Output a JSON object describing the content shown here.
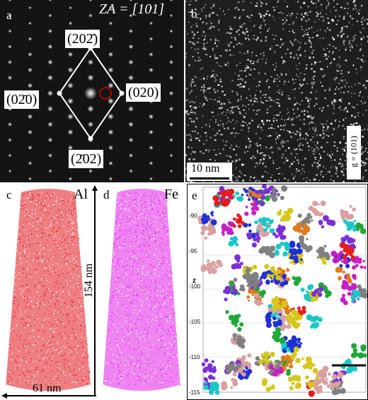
{
  "panels": {
    "a": {
      "label": "a",
      "zone_axis": "ZA = [101]",
      "indices": {
        "top": "(202̄)",
        "left": "(02̄0)",
        "right": "(020)",
        "bottom": "(2̄02)"
      }
    },
    "b": {
      "label": "b",
      "scale_bar": "10 nm",
      "g_vector": "g = (101)"
    },
    "c": {
      "label": "c",
      "element": "Al",
      "height_label": "154 nm",
      "width_label": "61 nm",
      "color": "#e0141c"
    },
    "d": {
      "label": "d",
      "element": "Fe",
      "color": "#e01ee6"
    },
    "e": {
      "label": "e",
      "z_axis_label": "z",
      "z_ticks": [
        "-90",
        "-95",
        "-100",
        "-105",
        "-110",
        "-115"
      ],
      "cluster_colors": [
        "#e61c1c",
        "#1f2fd6",
        "#1fa838",
        "#d6c619",
        "#19c7c7",
        "#c61fc6",
        "#e07a1c",
        "#d9a0a0",
        "#7a2fd6",
        "#808080"
      ]
    }
  }
}
